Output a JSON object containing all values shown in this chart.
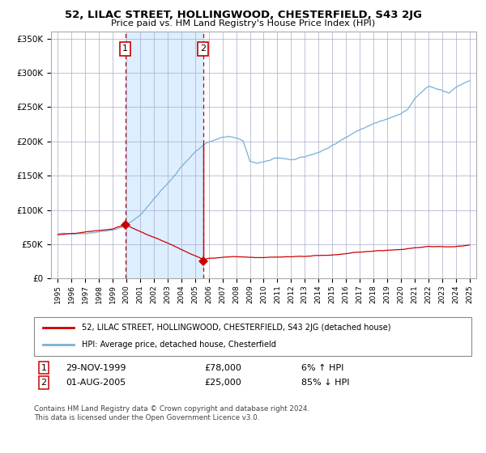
{
  "title1": "52, LILAC STREET, HOLLINGWOOD, CHESTERFIELD, S43 2JG",
  "title2": "Price paid vs. HM Land Registry's House Price Index (HPI)",
  "legend_line1": "52, LILAC STREET, HOLLINGWOOD, CHESTERFIELD, S43 2JG (detached house)",
  "legend_line2": "HPI: Average price, detached house, Chesterfield",
  "sale1_label": "1",
  "sale2_label": "2",
  "sale1_date": "29-NOV-1999",
  "sale1_price": "£78,000",
  "sale1_hpi": "6% ↑ HPI",
  "sale2_date": "01-AUG-2005",
  "sale2_price": "£25,000",
  "sale2_hpi": "85% ↓ HPI",
  "footnote": "Contains HM Land Registry data © Crown copyright and database right 2024.\nThis data is licensed under the Open Government Licence v3.0.",
  "sale_color": "#cc0000",
  "hpi_color": "#7ab0d4",
  "background_color": "#ffffff",
  "shading_color": "#ddeeff",
  "grid_color": "#aaaacc",
  "sale1_x": 1999.91,
  "sale1_y": 78000,
  "sale2_x": 2005.58,
  "sale2_y": 25000,
  "ylim": [
    0,
    360000
  ],
  "xlim": [
    1994.5,
    2025.5
  ],
  "hpi_knots_x": [
    1995,
    1996,
    1997,
    1998,
    1999,
    2000,
    2001,
    2002,
    2003,
    2004,
    2005,
    2005.5,
    2006,
    2007,
    2007.5,
    2008,
    2008.5,
    2009,
    2009.5,
    2010,
    2010.5,
    2011,
    2012,
    2013,
    2014,
    2015,
    2016,
    2017,
    2017.5,
    2018,
    2018.5,
    2019,
    2019.5,
    2020,
    2020.5,
    2021,
    2021.5,
    2022,
    2022.5,
    2023,
    2023.5,
    2024,
    2024.5,
    2025
  ],
  "hpi_knots_y": [
    65000,
    66000,
    68000,
    70000,
    73000,
    80000,
    95000,
    118000,
    140000,
    163000,
    185000,
    193000,
    200000,
    207000,
    208000,
    205000,
    200000,
    170000,
    168000,
    170000,
    172000,
    175000,
    172000,
    175000,
    183000,
    193000,
    205000,
    218000,
    223000,
    228000,
    231000,
    235000,
    238000,
    242000,
    248000,
    262000,
    272000,
    282000,
    278000,
    276000,
    272000,
    280000,
    286000,
    290000
  ],
  "red_knots_x": [
    1995,
    1996,
    1997,
    1998,
    1999,
    1999.91,
    2005.58,
    2006,
    2007,
    2008,
    2009,
    2010,
    2011,
    2012,
    2013,
    2014,
    2015,
    2016,
    2017,
    2018,
    2019,
    2020,
    2021,
    2022,
    2023,
    2024,
    2025
  ],
  "red_knots_y": [
    64000,
    66000,
    68000,
    70000,
    72000,
    78000,
    25000,
    27000,
    28000,
    28500,
    27000,
    27000,
    27500,
    27000,
    27500,
    28500,
    29500,
    31500,
    33500,
    35000,
    36000,
    37000,
    39500,
    42500,
    41500,
    41000,
    43000
  ]
}
